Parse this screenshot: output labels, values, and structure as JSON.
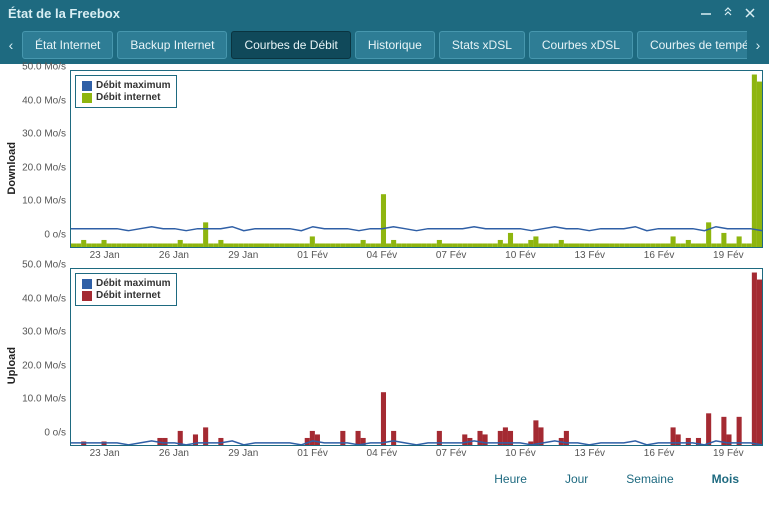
{
  "window": {
    "title": "État de la Freebox"
  },
  "tabs": [
    {
      "label": "État Internet",
      "active": false
    },
    {
      "label": "Backup Internet",
      "active": false
    },
    {
      "label": "Courbes de Débit",
      "active": true
    },
    {
      "label": "Historique",
      "active": false
    },
    {
      "label": "Stats xDSL",
      "active": false
    },
    {
      "label": "Courbes xDSL",
      "active": false
    },
    {
      "label": "Courbes de température",
      "active": false
    }
  ],
  "charts": {
    "ytick_labels": [
      "0 o/s",
      "10.0 Mo/s",
      "20.0 Mo/s",
      "30.0 Mo/s",
      "40.0 Mo/s",
      "50.0 Mo/s"
    ],
    "ylim": [
      0,
      50
    ],
    "xtick_labels": [
      "23 Jan",
      "26 Jan",
      "29 Jan",
      "01 Fév",
      "04 Fév",
      "07 Fév",
      "10 Fév",
      "13 Fév",
      "16 Fév",
      "19 Fév"
    ],
    "border_color": "#1e6a80",
    "download": {
      "axis_label": "Download",
      "legend": [
        {
          "label": "Débit maximum",
          "color": "#2f5fa6"
        },
        {
          "label": "Débit internet",
          "color": "#8eb50f"
        }
      ],
      "max_line_y": 5.2,
      "max_color": "#2f5fa6",
      "internet_color": "#8eb50f",
      "values": [
        1,
        1,
        2,
        1,
        1,
        1,
        2,
        1,
        1,
        1,
        1,
        1,
        1,
        1,
        1,
        1,
        1,
        1,
        1,
        1,
        1,
        2,
        1,
        1,
        1,
        1,
        7,
        1,
        1,
        2,
        1,
        1,
        1,
        1,
        1,
        1,
        1,
        1,
        1,
        1,
        1,
        1,
        1,
        1,
        1,
        1,
        1,
        3,
        1,
        1,
        1,
        1,
        1,
        1,
        1,
        1,
        1,
        2,
        1,
        1,
        1,
        15,
        1,
        2,
        1,
        1,
        1,
        1,
        1,
        1,
        1,
        1,
        2,
        1,
        1,
        1,
        1,
        1,
        1,
        1,
        1,
        1,
        1,
        1,
        2,
        1,
        4,
        1,
        1,
        1,
        2,
        3,
        1,
        1,
        1,
        1,
        2,
        1,
        1,
        1,
        1,
        1,
        1,
        1,
        1,
        1,
        1,
        1,
        1,
        1,
        1,
        1,
        1,
        1,
        1,
        1,
        1,
        1,
        3,
        1,
        1,
        2,
        1,
        1,
        1,
        7,
        1,
        1,
        4,
        1,
        1,
        3,
        1,
        1,
        49,
        47
      ]
    },
    "upload": {
      "axis_label": "Upload",
      "legend": [
        {
          "label": "Débit maximum",
          "color": "#2f5fa6"
        },
        {
          "label": "Débit internet",
          "color": "#a42a32"
        }
      ],
      "max_line_y": 0.6,
      "max_color": "#2f5fa6",
      "internet_color": "#a42a32",
      "values": [
        0,
        0,
        1,
        0,
        0,
        0,
        1,
        0,
        0,
        0,
        0,
        0,
        0,
        0,
        0,
        0,
        0,
        2,
        2,
        0,
        0,
        4,
        0,
        0,
        3,
        0,
        5,
        0,
        0,
        2,
        0,
        0,
        0,
        0,
        0,
        0,
        0,
        0,
        0,
        0,
        0,
        0,
        0,
        0,
        0,
        0,
        2,
        4,
        3,
        0,
        0,
        0,
        0,
        4,
        0,
        0,
        4,
        2,
        0,
        0,
        0,
        15,
        0,
        4,
        0,
        0,
        0,
        0,
        0,
        0,
        0,
        0,
        4,
        0,
        0,
        0,
        0,
        3,
        2,
        0,
        4,
        3,
        0,
        0,
        4,
        5,
        4,
        0,
        0,
        0,
        1,
        7,
        5,
        0,
        0,
        0,
        2,
        4,
        0,
        0,
        0,
        0,
        0,
        0,
        0,
        0,
        0,
        0,
        0,
        0,
        0,
        0,
        0,
        0,
        0,
        0,
        0,
        0,
        5,
        3,
        0,
        2,
        0,
        2,
        0,
        9,
        0,
        0,
        8,
        3,
        0,
        8,
        0,
        0,
        49,
        47
      ]
    }
  },
  "range": {
    "options": [
      "Heure",
      "Jour",
      "Semaine",
      "Mois"
    ],
    "active": "Mois"
  }
}
